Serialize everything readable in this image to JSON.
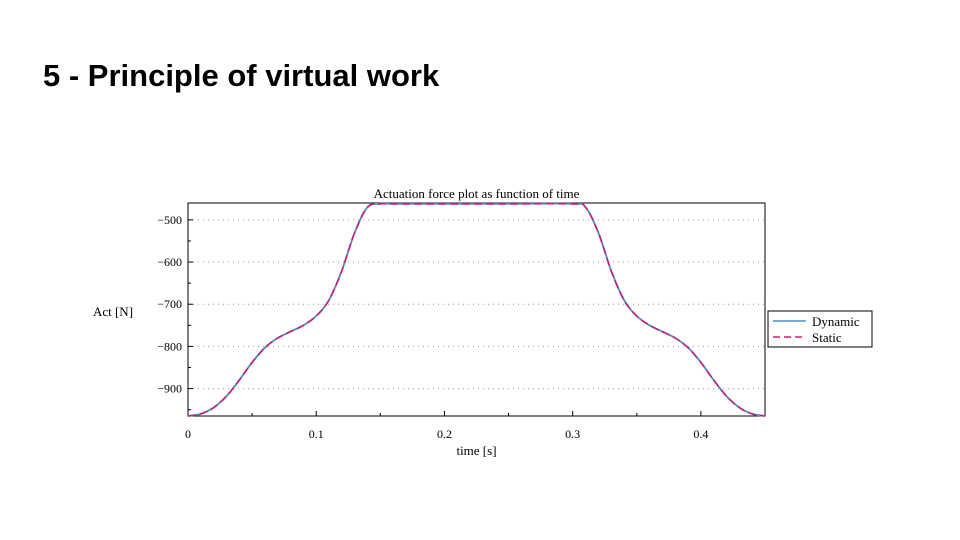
{
  "slide": {
    "title": "5 - Principle of virtual work"
  },
  "chart_data": {
    "type": "line",
    "title": "Actuation force plot as function of time",
    "xlabel": "time [s]",
    "ylabel": "Act [N]",
    "xlim": [
      0,
      0.45
    ],
    "ylim": [
      -965,
      -460
    ],
    "xticks": [
      0,
      0.1,
      0.2,
      0.3,
      0.4
    ],
    "xtick_labels": [
      "0",
      "0.1",
      "0.2",
      "0.3",
      "0.4"
    ],
    "yticks": [
      -500,
      -600,
      -700,
      -800,
      -900
    ],
    "ytick_labels": [
      "−500",
      "−600",
      "−700",
      "−800",
      "−900"
    ],
    "grid": "horizontal-dotted",
    "legend": "right",
    "colors": {
      "Dynamic": "#4a8fc0",
      "Static": "#c8207a"
    },
    "x": [
      0,
      0.01,
      0.02,
      0.03,
      0.04,
      0.05,
      0.06,
      0.07,
      0.08,
      0.09,
      0.1,
      0.11,
      0.12,
      0.13,
      0.14,
      0.15,
      0.16,
      0.2,
      0.25,
      0.3,
      0.31,
      0.32,
      0.33,
      0.34,
      0.35,
      0.36,
      0.37,
      0.38,
      0.39,
      0.4,
      0.41,
      0.42,
      0.43,
      0.44,
      0.45
    ],
    "series": [
      {
        "name": "Dynamic",
        "values": [
          -965,
          -960,
          -945,
          -918,
          -880,
          -838,
          -803,
          -780,
          -765,
          -750,
          -728,
          -690,
          -620,
          -530,
          -470,
          -462,
          -462,
          -462,
          -462,
          -462,
          -470,
          -530,
          -620,
          -690,
          -728,
          -750,
          -765,
          -780,
          -803,
          -838,
          -880,
          -918,
          -945,
          -960,
          -965
        ]
      },
      {
        "name": "Static",
        "values": [
          -965,
          -960,
          -945,
          -918,
          -880,
          -838,
          -803,
          -780,
          -765,
          -750,
          -728,
          -690,
          -620,
          -530,
          -470,
          -462,
          -462,
          -462,
          -462,
          -462,
          -470,
          -530,
          -620,
          -690,
          -728,
          -750,
          -765,
          -780,
          -803,
          -838,
          -880,
          -918,
          -945,
          -960,
          -965
        ]
      }
    ]
  }
}
